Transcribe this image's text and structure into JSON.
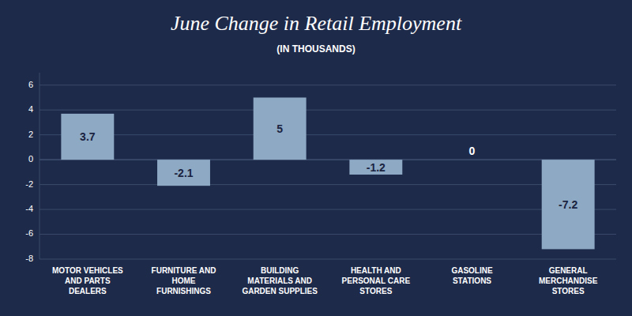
{
  "chart_data": {
    "type": "bar",
    "title": "June Change in Retail Employment",
    "subtitle": "(IN THOUSANDS)",
    "categories": [
      "MOTOR VEHICLES\nAND PARTS\nDEALERS",
      "FURNITURE AND\nHOME\nFURNISHINGS",
      "BUILDING\nMATERIALS AND\nGARDEN SUPPLIES",
      "HEALTH AND\nPERSONAL CARE\nSTORES",
      "GASOLINE\nSTATIONS",
      "GENERAL\nMERCHANDISE\nSTORES"
    ],
    "values": [
      3.7,
      -2.1,
      5,
      -1.2,
      0,
      -7.2
    ],
    "color": "#8da9c4",
    "ylim": [
      -8,
      7
    ],
    "yticks": [
      -8,
      -6,
      -4,
      -2,
      0,
      2,
      4,
      6
    ],
    "grid": true,
    "data_labels": true
  }
}
